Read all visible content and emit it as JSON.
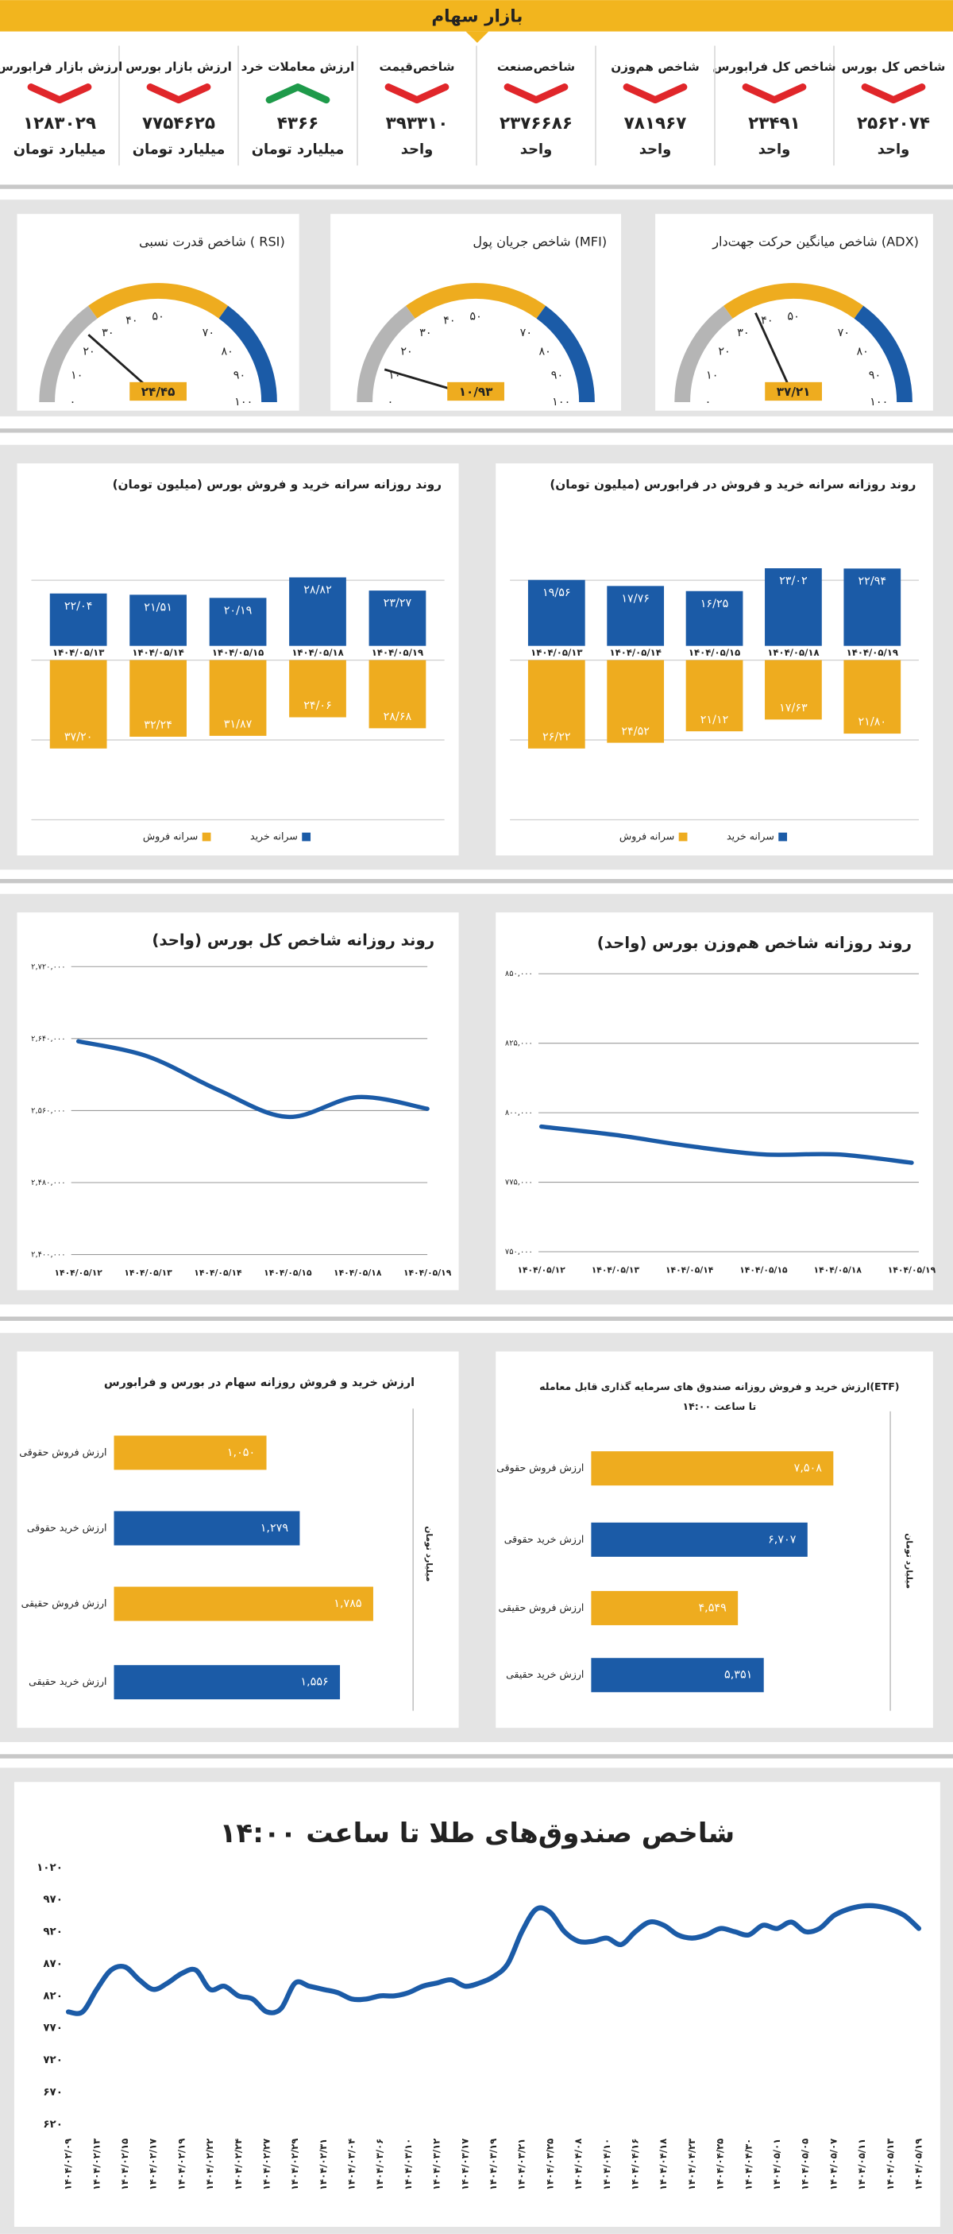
{
  "header": {
    "title": "بازار سهام"
  },
  "stats": [
    {
      "label": "شاخص کل بورس",
      "value": "۲۵۶۲۰۷۴",
      "unit": "واحد",
      "trend": "down"
    },
    {
      "label": "شاخص کل فرابورس",
      "value": "۲۳۴۹۱",
      "unit": "واحد",
      "trend": "down"
    },
    {
      "label": "شاخص هم‌وزن",
      "value": "۷۸۱۹۶۷",
      "unit": "واحد",
      "trend": "down"
    },
    {
      "label": "شاخص‌صنعت",
      "value": "۲۳۷۶۶۸۶",
      "unit": "واحد",
      "trend": "down"
    },
    {
      "label": "شاخص‌قیمت",
      "value": "۳۹۳۳۱۰",
      "unit": "واحد",
      "trend": "down"
    },
    {
      "label": "ارزش معاملات خرد",
      "value": "۴۳۶۶",
      "unit": "میلیارد تومان",
      "trend": "up"
    },
    {
      "label": "ارزش بازار بورس",
      "value": "۷۷۵۴۶۲۵",
      "unit": "میلیارد تومان",
      "trend": "down"
    },
    {
      "label": "ارزش بازار فرابورس",
      "value": "۱۲۸۳۰۲۹",
      "unit": "میلیارد تومان",
      "trend": "down"
    }
  ],
  "chart_data": [
    {
      "type": "gauge",
      "title": "شاخص میانگین حرکت جهت‌دار (ADX)",
      "value": 37.21,
      "value_label": "۳۷/۲۱",
      "color": "#eeac1f",
      "ylim": [
        0,
        100
      ],
      "yticks": [
        {
          "value": 0,
          "label": "۰"
        },
        {
          "value": 10,
          "label": "۱۰"
        },
        {
          "value": 20,
          "label": "۲۰"
        },
        {
          "value": 30,
          "label": "۳۰"
        },
        {
          "value": 40,
          "label": "۴۰"
        },
        {
          "value": 50,
          "label": "۵۰"
        },
        {
          "value": 70,
          "label": "۷۰"
        },
        {
          "value": 80,
          "label": "۸۰"
        },
        {
          "value": 90,
          "label": "۹۰"
        },
        {
          "value": 100,
          "label": "۱۰۰"
        }
      ],
      "bands": [
        {
          "from": 0,
          "to": 30,
          "color": "#b5b5b5"
        },
        {
          "from": 30,
          "to": 70,
          "color": "#eeac1f"
        },
        {
          "from": 70,
          "to": 100,
          "color": "#1b5ba7"
        }
      ]
    },
    {
      "type": "gauge",
      "title": "شاخص جریان پول (MFI)",
      "value": 10.93,
      "value_label": "۱۰/۹۳",
      "color": "#eeac1f",
      "ylim": [
        0,
        100
      ],
      "yticks": [
        {
          "value": 0,
          "label": "۰"
        },
        {
          "value": 10,
          "label": "۱۰"
        },
        {
          "value": 20,
          "label": "۲۰"
        },
        {
          "value": 30,
          "label": "۳۰"
        },
        {
          "value": 40,
          "label": "۴۰"
        },
        {
          "value": 50,
          "label": "۵۰"
        },
        {
          "value": 70,
          "label": "۷۰"
        },
        {
          "value": 80,
          "label": "۸۰"
        },
        {
          "value": 90,
          "label": "۹۰"
        },
        {
          "value": 100,
          "label": "۱۰۰"
        }
      ],
      "bands": [
        {
          "from": 0,
          "to": 30,
          "color": "#b5b5b5"
        },
        {
          "from": 30,
          "to": 70,
          "color": "#eeac1f"
        },
        {
          "from": 70,
          "to": 100,
          "color": "#1b5ba7"
        }
      ]
    },
    {
      "type": "gauge",
      "title": "شاخص قدرت نسبی ( RSI)",
      "value": 24.45,
      "value_label": "۲۴/۴۵",
      "color": "#eeac1f",
      "ylim": [
        0,
        100
      ],
      "yticks": [
        {
          "value": 0,
          "label": "۰"
        },
        {
          "value": 10,
          "label": "۱۰"
        },
        {
          "value": 20,
          "label": "۲۰"
        },
        {
          "value": 30,
          "label": "۳۰"
        },
        {
          "value": 40,
          "label": "۴۰"
        },
        {
          "value": 50,
          "label": "۵۰"
        },
        {
          "value": 70,
          "label": "۷۰"
        },
        {
          "value": 80,
          "label": "۸۰"
        },
        {
          "value": 90,
          "label": "۹۰"
        },
        {
          "value": 100,
          "label": "۱۰۰"
        }
      ],
      "bands": [
        {
          "from": 0,
          "to": 30,
          "color": "#b5b5b5"
        },
        {
          "from": 30,
          "to": 70,
          "color": "#eeac1f"
        },
        {
          "from": 70,
          "to": 100,
          "color": "#1b5ba7"
        }
      ]
    },
    {
      "type": "diverging_bar",
      "title": "روند روزانه سرانه خرید و فروش در فرابورس (میلیون تومان)",
      "categories": [
        "۱۴۰۴/۰۵/۱۳",
        "۱۴۰۴/۰۵/۱۴",
        "۱۴۰۴/۰۵/۱۵",
        "۱۴۰۴/۰۵/۱۸",
        "۱۴۰۴/۰۵/۱۹"
      ],
      "series": [
        {
          "name": "سرانه خرید",
          "color": "#1b5ba7",
          "direction": "up",
          "values": [
            19.56,
            17.76,
            16.25,
            23.02,
            22.94
          ],
          "value_labels": [
            "۱۹/۵۶",
            "۱۷/۷۶",
            "۱۶/۲۵",
            "۲۳/۰۲",
            "۲۲/۹۴"
          ]
        },
        {
          "name": "سرانه فروش",
          "color": "#eeac1f",
          "direction": "down",
          "values": [
            26.22,
            24.52,
            21.12,
            17.63,
            21.8
          ],
          "value_labels": [
            "۲۶/۲۲",
            "۲۴/۵۲",
            "۲۱/۱۲",
            "۱۷/۶۳",
            "۲۱/۸۰"
          ]
        }
      ]
    },
    {
      "type": "diverging_bar",
      "title": "روند روزانه سرانه خرید و فروش بورس (میلیون تومان)",
      "categories": [
        "۱۴۰۴/۰۵/۱۳",
        "۱۴۰۴/۰۵/۱۴",
        "۱۴۰۴/۰۵/۱۵",
        "۱۴۰۴/۰۵/۱۸",
        "۱۴۰۴/۰۵/۱۹"
      ],
      "series": [
        {
          "name": "سرانه خرید",
          "color": "#1b5ba7",
          "direction": "up",
          "values": [
            22.04,
            21.51,
            20.19,
            28.82,
            23.27
          ],
          "value_labels": [
            "۲۲/۰۴",
            "۲۱/۵۱",
            "۲۰/۱۹",
            "۲۸/۸۲",
            "۲۳/۲۷"
          ]
        },
        {
          "name": "سرانه فروش",
          "color": "#eeac1f",
          "direction": "down",
          "values": [
            37.2,
            32.24,
            31.87,
            24.06,
            28.68
          ],
          "value_labels": [
            "۳۷/۲۰",
            "۳۲/۲۴",
            "۳۱/۸۷",
            "۲۴/۰۶",
            "۲۸/۶۸"
          ]
        }
      ]
    },
    {
      "type": "line",
      "title": "روند روزانه شاخص هم‌وزن بورس (واحد)",
      "color": "#1b5ba7",
      "categories": [
        "۱۴۰۴/۰۵/۱۲",
        "۱۴۰۴/۰۵/۱۳",
        "۱۴۰۴/۰۵/۱۴",
        "۱۴۰۴/۰۵/۱۵",
        "۱۴۰۴/۰۵/۱۸",
        "۱۴۰۴/۰۵/۱۹"
      ],
      "values": [
        795000,
        792000,
        788000,
        785000,
        785000,
        782000
      ],
      "ylim": [
        750000,
        850000
      ],
      "yticks": [
        {
          "value": 750000,
          "label": "۷۵۰,۰۰۰"
        },
        {
          "value": 775000,
          "label": "۷۷۵,۰۰۰"
        },
        {
          "value": 800000,
          "label": "۸۰۰,۰۰۰"
        },
        {
          "value": 825000,
          "label": "۸۲۵,۰۰۰"
        },
        {
          "value": 850000,
          "label": "۸۵۰,۰۰۰"
        }
      ],
      "grid": true
    },
    {
      "type": "line",
      "title": "روند روزانه شاخص کل بورس (واحد)",
      "color": "#1b5ba7",
      "categories": [
        "۱۴۰۴/۰۵/۱۲",
        "۱۴۰۴/۰۵/۱۳",
        "۱۴۰۴/۰۵/۱۴",
        "۱۴۰۴/۰۵/۱۵",
        "۱۴۰۴/۰۵/۱۸",
        "۱۴۰۴/۰۵/۱۹"
      ],
      "values": [
        2637000,
        2620000,
        2583000,
        2553000,
        2575000,
        2562000
      ],
      "ylim": [
        2400000,
        2720000
      ],
      "yticks": [
        {
          "value": 2400000,
          "label": "۲,۴۰۰,۰۰۰"
        },
        {
          "value": 2480000,
          "label": "۲,۴۸۰,۰۰۰"
        },
        {
          "value": 2560000,
          "label": "۲,۵۶۰,۰۰۰"
        },
        {
          "value": 2640000,
          "label": "۲,۶۴۰,۰۰۰"
        },
        {
          "value": 2720000,
          "label": "۲,۷۲۰,۰۰۰"
        }
      ],
      "grid": true
    },
    {
      "type": "hbar",
      "title": "ارزش خرید و فروش روزانه صندوق های سرمایه گذاری قابل معامله(ETF)",
      "subtitle": "تا ساعت ۱۴:۰۰",
      "axis_label": "میلیارد تومان",
      "categories": [
        "ارزش فروش حقوقی",
        "ارزش خرید حقوقی",
        "ارزش فروش حقیقی",
        "ارزش خرید حقیقی"
      ],
      "values": [
        7508,
        6707,
        4549,
        5351
      ],
      "value_labels": [
        "۷,۵۰۸",
        "۶,۷۰۷",
        "۴,۵۴۹",
        "۵,۳۵۱"
      ],
      "colors": [
        "#eeac1f",
        "#1b5ba7",
        "#eeac1f",
        "#1b5ba7"
      ]
    },
    {
      "type": "hbar",
      "title": "ارزش خرید و فروش روزانه سهام در بورس و فرابورس",
      "axis_label": "میلیارد تومان",
      "categories": [
        "ارزش فروش حقوقی",
        "ارزش خرید حقوقی",
        "ارزش فروش حقیقی",
        "ارزش خرید حقیقی"
      ],
      "values": [
        1050,
        1279,
        1785,
        1556
      ],
      "value_labels": [
        "۱,۰۵۰",
        "۱,۲۷۹",
        "۱,۷۸۵",
        "۱,۵۵۶"
      ],
      "colors": [
        "#eeac1f",
        "#1b5ba7",
        "#eeac1f",
        "#1b5ba7"
      ]
    },
    {
      "type": "line",
      "title": "شاخص صندوق‌های طلا تا ساعت ۱۴:۰۰",
      "color": "#1b5ba7",
      "categories": [
        "۱۴۰۴/۰۲/۰۹",
        null,
        "۱۴۰۴/۰۲/۱۳",
        null,
        "۱۴۰۴/۰۲/۱۵",
        null,
        "۱۴۰۴/۰۲/۱۷",
        null,
        "۱۴۰۴/۰۲/۱۹",
        null,
        "۱۴۰۴/۰۲/۲۲",
        null,
        "۱۴۰۴/۰۲/۲۴",
        null,
        "۱۴۰۴/۰۲/۲۷",
        null,
        "۱۴۰۴/۰۲/۲۹",
        null,
        "۱۴۰۴/۰۲/۳۱",
        null,
        "۱۴۰۴/۰۳/۰۴",
        null,
        "۱۴۰۴/۰۳/۰۶",
        null,
        "۱۴۰۴/۰۳/۱۰",
        null,
        "۱۴۰۴/۰۳/۱۲",
        null,
        "۱۴۰۴/۰۳/۱۷",
        null,
        "۱۴۰۴/۰۳/۱۹",
        null,
        "۱۴۰۴/۰۳/۲۱",
        null,
        "۱۴۰۴/۰۳/۲۵",
        null,
        "۱۴۰۴/۰۴/۰۸",
        null,
        "۱۴۰۴/۰۴/۱۰",
        null,
        "۱۴۰۴/۰۴/۱۶",
        null,
        "۱۴۰۴/۰۴/۱۸",
        null,
        "۱۴۰۴/۰۴/۲۳",
        null,
        "۱۴۰۴/۰۴/۲۵",
        null,
        "۱۴۰۴/۰۴/۳۰",
        null,
        "۱۴۰۴/۰۵/۰۱",
        null,
        "۱۴۰۴/۰۵/۰۵",
        null,
        "۱۴۰۴/۰۵/۰۷",
        null,
        "۱۴۰۴/۰۵/۱۱",
        null,
        "۱۴۰۴/۰۵/۱۳",
        null,
        "۱۴۰۴/۰۵/۱۹"
      ],
      "values": [
        795,
        795,
        830,
        860,
        865,
        845,
        830,
        840,
        855,
        860,
        830,
        835,
        820,
        815,
        795,
        800,
        840,
        835,
        830,
        825,
        815,
        815,
        820,
        820,
        825,
        835,
        840,
        845,
        835,
        840,
        850,
        870,
        920,
        955,
        950,
        920,
        905,
        905,
        910,
        900,
        920,
        935,
        930,
        915,
        910,
        915,
        925,
        920,
        915,
        930,
        925,
        935,
        920,
        925,
        945,
        955,
        960,
        960,
        955,
        945,
        925
      ],
      "ylim": [
        620,
        1020
      ],
      "yticks": [
        {
          "value": 620,
          "label": "۶۲۰"
        },
        {
          "value": 670,
          "label": "۶۷۰"
        },
        {
          "value": 720,
          "label": "۷۲۰"
        },
        {
          "value": 770,
          "label": "۷۷۰"
        },
        {
          "value": 820,
          "label": "۸۲۰"
        },
        {
          "value": 870,
          "label": "۸۷۰"
        },
        {
          "value": 920,
          "label": "۹۲۰"
        },
        {
          "value": 970,
          "label": "۹۷۰"
        },
        {
          "value": 1020,
          "label": "۱۰۲۰"
        }
      ],
      "grid": false
    }
  ]
}
